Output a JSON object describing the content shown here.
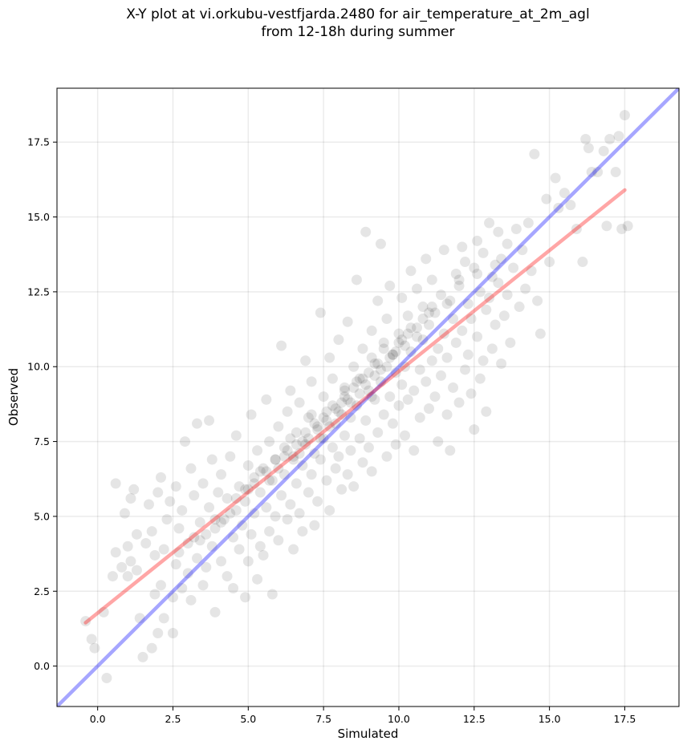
{
  "chart_data": {
    "type": "scatter",
    "title": [
      "X-Y plot at vi.orkubu-vestfjarda.2480 for air_temperature_at_2m_agl",
      "from 12-18h during summer"
    ],
    "xlabel": "Simulated",
    "ylabel": "Observed",
    "xlim": [
      -1.35,
      19.3
    ],
    "ylim": [
      -1.35,
      19.3
    ],
    "xticks": [
      "0.0",
      "2.5",
      "5.0",
      "7.5",
      "10.0",
      "12.5",
      "15.0",
      "17.5"
    ],
    "yticks": [
      "0.0",
      "2.5",
      "5.0",
      "7.5",
      "10.0",
      "12.5",
      "15.0",
      "17.5"
    ],
    "tick_values": [
      0,
      2.5,
      5,
      7.5,
      10,
      12.5,
      15,
      17.5
    ],
    "grid": true,
    "point_color": "#000000",
    "point_alpha": 0.1,
    "points": [
      [
        -0.4,
        1.5
      ],
      [
        -0.2,
        0.9
      ],
      [
        -0.1,
        0.6
      ],
      [
        0.2,
        1.8
      ],
      [
        0.3,
        -0.4
      ],
      [
        0.5,
        3.0
      ],
      [
        0.6,
        3.8
      ],
      [
        0.6,
        6.1
      ],
      [
        0.8,
        3.3
      ],
      [
        0.9,
        5.1
      ],
      [
        1.0,
        3.0
      ],
      [
        1.0,
        4.0
      ],
      [
        1.1,
        3.5
      ],
      [
        1.1,
        5.6
      ],
      [
        1.2,
        5.9
      ],
      [
        1.3,
        3.2
      ],
      [
        1.3,
        4.4
      ],
      [
        1.4,
        1.6
      ],
      [
        1.5,
        0.3
      ],
      [
        1.6,
        4.1
      ],
      [
        1.7,
        5.4
      ],
      [
        1.8,
        4.5
      ],
      [
        1.8,
        0.6
      ],
      [
        1.9,
        2.4
      ],
      [
        1.9,
        3.7
      ],
      [
        2.0,
        5.8
      ],
      [
        2.0,
        1.1
      ],
      [
        2.1,
        6.3
      ],
      [
        2.1,
        2.7
      ],
      [
        2.2,
        3.9
      ],
      [
        2.2,
        1.6
      ],
      [
        2.3,
        4.9
      ],
      [
        2.4,
        5.5
      ],
      [
        2.5,
        2.3
      ],
      [
        2.5,
        1.1
      ],
      [
        2.6,
        3.4
      ],
      [
        2.6,
        6.0
      ],
      [
        2.7,
        4.6
      ],
      [
        2.8,
        2.6
      ],
      [
        2.8,
        5.2
      ],
      [
        2.9,
        7.5
      ],
      [
        3.0,
        3.1
      ],
      [
        3.0,
        4.1
      ],
      [
        3.1,
        6.6
      ],
      [
        3.1,
        2.2
      ],
      [
        3.2,
        5.7
      ],
      [
        3.3,
        8.1
      ],
      [
        3.3,
        3.6
      ],
      [
        3.4,
        4.8
      ],
      [
        3.5,
        6.1
      ],
      [
        3.5,
        2.7
      ],
      [
        3.6,
        3.3
      ],
      [
        3.7,
        5.3
      ],
      [
        3.7,
        8.2
      ],
      [
        3.8,
        4.0
      ],
      [
        3.8,
        6.9
      ],
      [
        3.9,
        1.8
      ],
      [
        3.9,
        4.6
      ],
      [
        4.0,
        5.8
      ],
      [
        4.1,
        3.5
      ],
      [
        4.1,
        6.4
      ],
      [
        4.2,
        4.9
      ],
      [
        4.3,
        3.0
      ],
      [
        4.3,
        5.6
      ],
      [
        4.4,
        7.0
      ],
      [
        4.5,
        4.3
      ],
      [
        4.5,
        2.6
      ],
      [
        4.6,
        5.2
      ],
      [
        4.6,
        7.7
      ],
      [
        4.7,
        3.9
      ],
      [
        4.7,
        6.0
      ],
      [
        4.8,
        4.7
      ],
      [
        4.9,
        2.3
      ],
      [
        4.9,
        5.5
      ],
      [
        5.0,
        6.7
      ],
      [
        5.0,
        3.5
      ],
      [
        5.1,
        4.4
      ],
      [
        5.1,
        8.4
      ],
      [
        5.2,
        6.1
      ],
      [
        5.2,
        5.1
      ],
      [
        5.3,
        2.9
      ],
      [
        5.3,
        7.2
      ],
      [
        5.4,
        4.0
      ],
      [
        5.4,
        5.8
      ],
      [
        5.5,
        6.6
      ],
      [
        5.5,
        3.7
      ],
      [
        5.6,
        8.9
      ],
      [
        5.6,
        5.3
      ],
      [
        5.7,
        4.5
      ],
      [
        5.7,
        7.5
      ],
      [
        5.8,
        6.2
      ],
      [
        5.8,
        2.4
      ],
      [
        5.9,
        5.0
      ],
      [
        5.9,
        6.9
      ],
      [
        6.0,
        8.0
      ],
      [
        6.0,
        4.2
      ],
      [
        6.1,
        10.7
      ],
      [
        6.1,
        5.7
      ],
      [
        6.2,
        7.3
      ],
      [
        6.2,
        6.4
      ],
      [
        6.3,
        4.9
      ],
      [
        6.3,
        8.5
      ],
      [
        6.4,
        5.4
      ],
      [
        6.4,
        9.2
      ],
      [
        6.5,
        7.0
      ],
      [
        6.5,
        3.9
      ],
      [
        6.6,
        6.1
      ],
      [
        6.6,
        7.8
      ],
      [
        6.7,
        5.1
      ],
      [
        6.7,
        8.8
      ],
      [
        6.8,
        6.7
      ],
      [
        6.8,
        4.5
      ],
      [
        6.9,
        7.4
      ],
      [
        6.9,
        10.2
      ],
      [
        7.0,
        5.8
      ],
      [
        7.0,
        8.3
      ],
      [
        7.1,
        6.4
      ],
      [
        7.1,
        9.5
      ],
      [
        7.2,
        7.1
      ],
      [
        7.2,
        4.7
      ],
      [
        7.3,
        8.0
      ],
      [
        7.3,
        5.5
      ],
      [
        7.4,
        11.8
      ],
      [
        7.4,
        6.9
      ],
      [
        7.5,
        7.6
      ],
      [
        7.5,
        9.0
      ],
      [
        7.6,
        6.2
      ],
      [
        7.6,
        8.5
      ],
      [
        7.7,
        10.3
      ],
      [
        7.7,
        5.2
      ],
      [
        7.8,
        7.3
      ],
      [
        7.8,
        9.6
      ],
      [
        7.9,
        6.6
      ],
      [
        7.9,
        8.1
      ],
      [
        8.0,
        7.0
      ],
      [
        8.0,
        10.9
      ],
      [
        8.1,
        5.9
      ],
      [
        8.1,
        8.8
      ],
      [
        8.2,
        7.7
      ],
      [
        8.2,
        9.3
      ],
      [
        8.3,
        6.4
      ],
      [
        8.3,
        11.5
      ],
      [
        8.4,
        8.3
      ],
      [
        8.4,
        7.2
      ],
      [
        8.5,
        10.0
      ],
      [
        8.5,
        6.0
      ],
      [
        8.6,
        8.7
      ],
      [
        8.6,
        12.9
      ],
      [
        8.7,
        7.6
      ],
      [
        8.7,
        9.6
      ],
      [
        8.8,
        6.8
      ],
      [
        8.8,
        10.6
      ],
      [
        8.9,
        8.2
      ],
      [
        8.9,
        14.5
      ],
      [
        9.0,
        7.3
      ],
      [
        9.0,
        9.2
      ],
      [
        9.1,
        11.2
      ],
      [
        9.1,
        6.5
      ],
      [
        9.2,
        8.9
      ],
      [
        9.2,
        10.1
      ],
      [
        9.3,
        7.8
      ],
      [
        9.3,
        12.2
      ],
      [
        9.4,
        9.5
      ],
      [
        9.4,
        14.1
      ],
      [
        9.5,
        8.4
      ],
      [
        9.5,
        10.8
      ],
      [
        9.6,
        7.0
      ],
      [
        9.6,
        11.6
      ],
      [
        9.7,
        9.0
      ],
      [
        9.7,
        12.7
      ],
      [
        9.8,
        8.1
      ],
      [
        9.8,
        10.4
      ],
      [
        9.9,
        9.8
      ],
      [
        9.9,
        7.4
      ],
      [
        10.0,
        11.1
      ],
      [
        10.0,
        8.7
      ],
      [
        10.1,
        12.3
      ],
      [
        10.1,
        9.4
      ],
      [
        10.2,
        10.0
      ],
      [
        10.2,
        7.7
      ],
      [
        10.3,
        11.7
      ],
      [
        10.3,
        8.9
      ],
      [
        10.4,
        13.2
      ],
      [
        10.4,
        10.5
      ],
      [
        10.5,
        9.2
      ],
      [
        10.5,
        7.2
      ],
      [
        10.6,
        11.3
      ],
      [
        10.6,
        12.6
      ],
      [
        10.7,
        9.9
      ],
      [
        10.7,
        8.3
      ],
      [
        10.8,
        10.9
      ],
      [
        10.8,
        12.0
      ],
      [
        10.9,
        9.5
      ],
      [
        10.9,
        13.6
      ],
      [
        11.0,
        11.4
      ],
      [
        11.0,
        8.6
      ],
      [
        11.1,
        10.2
      ],
      [
        11.1,
        12.9
      ],
      [
        11.2,
        9.0
      ],
      [
        11.2,
        11.8
      ],
      [
        11.3,
        7.5
      ],
      [
        11.3,
        10.6
      ],
      [
        11.4,
        12.4
      ],
      [
        11.4,
        9.7
      ],
      [
        11.5,
        13.9
      ],
      [
        11.5,
        11.1
      ],
      [
        11.6,
        8.4
      ],
      [
        11.6,
        10.3
      ],
      [
        11.7,
        12.2
      ],
      [
        11.7,
        7.2
      ],
      [
        11.8,
        11.6
      ],
      [
        11.8,
        9.3
      ],
      [
        11.9,
        13.1
      ],
      [
        11.9,
        10.8
      ],
      [
        12.0,
        12.7
      ],
      [
        12.0,
        8.8
      ],
      [
        12.1,
        14.0
      ],
      [
        12.1,
        11.2
      ],
      [
        12.2,
        9.9
      ],
      [
        12.2,
        13.5
      ],
      [
        12.3,
        10.4
      ],
      [
        12.3,
        12.1
      ],
      [
        12.4,
        11.6
      ],
      [
        12.4,
        9.1
      ],
      [
        12.5,
        13.3
      ],
      [
        12.5,
        7.9
      ],
      [
        12.6,
        11.0
      ],
      [
        12.6,
        14.2
      ],
      [
        12.7,
        12.5
      ],
      [
        12.7,
        9.6
      ],
      [
        12.8,
        10.2
      ],
      [
        12.8,
        13.8
      ],
      [
        12.9,
        11.9
      ],
      [
        12.9,
        8.5
      ],
      [
        13.0,
        12.3
      ],
      [
        13.0,
        14.8
      ],
      [
        13.1,
        10.6
      ],
      [
        13.1,
        13.0
      ],
      [
        13.2,
        11.4
      ],
      [
        13.3,
        14.5
      ],
      [
        13.3,
        12.8
      ],
      [
        13.4,
        10.1
      ],
      [
        13.4,
        13.6
      ],
      [
        13.5,
        11.7
      ],
      [
        13.6,
        14.1
      ],
      [
        13.6,
        12.4
      ],
      [
        13.7,
        10.8
      ],
      [
        13.8,
        13.3
      ],
      [
        13.9,
        14.6
      ],
      [
        14.0,
        12.0
      ],
      [
        14.1,
        13.9
      ],
      [
        14.2,
        12.6
      ],
      [
        14.3,
        14.8
      ],
      [
        14.4,
        13.2
      ],
      [
        14.5,
        17.1
      ],
      [
        14.6,
        12.2
      ],
      [
        14.7,
        11.1
      ],
      [
        14.9,
        15.6
      ],
      [
        15.0,
        13.5
      ],
      [
        15.2,
        16.3
      ],
      [
        15.3,
        15.3
      ],
      [
        15.5,
        15.8
      ],
      [
        15.7,
        15.4
      ],
      [
        15.9,
        14.6
      ],
      [
        16.1,
        13.5
      ],
      [
        16.2,
        17.6
      ],
      [
        16.3,
        17.3
      ],
      [
        16.4,
        16.5
      ],
      [
        16.6,
        16.5
      ],
      [
        16.8,
        17.2
      ],
      [
        16.9,
        14.7
      ],
      [
        17.0,
        17.6
      ],
      [
        17.2,
        16.5
      ],
      [
        17.3,
        17.7
      ],
      [
        17.4,
        14.6
      ],
      [
        17.5,
        18.4
      ],
      [
        17.6,
        14.7
      ],
      [
        6.2,
        7.0
      ],
      [
        6.8,
        7.5
      ],
      [
        7.3,
        7.9
      ],
      [
        7.9,
        8.6
      ],
      [
        8.4,
        8.8
      ],
      [
        8.9,
        9.4
      ],
      [
        9.4,
        9.9
      ],
      [
        5.7,
        6.2
      ],
      [
        6.5,
        6.9
      ],
      [
        7.0,
        7.6
      ],
      [
        7.6,
        8.2
      ],
      [
        8.1,
        8.4
      ],
      [
        8.7,
        9.1
      ],
      [
        9.2,
        9.7
      ],
      [
        9.7,
        10.3
      ],
      [
        10.2,
        10.7
      ],
      [
        5.4,
        6.5
      ],
      [
        6.0,
        6.6
      ],
      [
        6.6,
        7.4
      ],
      [
        7.2,
        8.1
      ],
      [
        7.7,
        8.0
      ],
      [
        8.3,
        8.9
      ],
      [
        8.8,
        9.6
      ],
      [
        9.3,
        10.1
      ],
      [
        9.9,
        10.5
      ],
      [
        4.9,
        5.9
      ],
      [
        5.2,
        6.3
      ],
      [
        6.3,
        7.2
      ],
      [
        7.4,
        7.6
      ],
      [
        8.0,
        8.5
      ],
      [
        8.5,
        9.3
      ],
      [
        9.1,
        9.0
      ],
      [
        9.6,
        10.0
      ],
      [
        10.1,
        10.9
      ],
      [
        10.6,
        11.0
      ],
      [
        4.6,
        5.6
      ],
      [
        5.9,
        6.9
      ],
      [
        6.9,
        7.8
      ],
      [
        8.2,
        9.0
      ],
      [
        9.0,
        9.8
      ],
      [
        9.8,
        10.4
      ],
      [
        10.4,
        11.3
      ],
      [
        11.0,
        11.8
      ],
      [
        3.9,
        4.9
      ],
      [
        4.4,
        5.1
      ],
      [
        5.0,
        5.9
      ],
      [
        6.4,
        7.6
      ],
      [
        7.1,
        8.4
      ],
      [
        7.8,
        8.7
      ],
      [
        8.6,
        9.5
      ],
      [
        9.5,
        10.6
      ],
      [
        10.3,
        11.1
      ],
      [
        11.1,
        12.0
      ],
      [
        11.6,
        12.1
      ],
      [
        3.4,
        4.2
      ],
      [
        4.1,
        4.8
      ],
      [
        5.6,
        6.5
      ],
      [
        6.7,
        7.1
      ],
      [
        7.5,
        8.3
      ],
      [
        8.2,
        9.2
      ],
      [
        9.1,
        10.3
      ],
      [
        10.0,
        10.8
      ],
      [
        10.8,
        11.6
      ],
      [
        12.0,
        12.9
      ],
      [
        12.6,
        13.1
      ],
      [
        13.2,
        13.4
      ],
      [
        2.7,
        3.8
      ],
      [
        3.2,
        4.3
      ],
      [
        3.6,
        4.4
      ]
    ],
    "lines": [
      {
        "color": "#0000ff",
        "alpha": 0.35,
        "x": [
          -1.35,
          19.3
        ],
        "y": [
          -1.35,
          19.3
        ]
      },
      {
        "color": "#ff0000",
        "alpha": 0.35,
        "x": [
          -0.4,
          17.5
        ],
        "y": [
          1.45,
          15.9
        ]
      }
    ]
  }
}
